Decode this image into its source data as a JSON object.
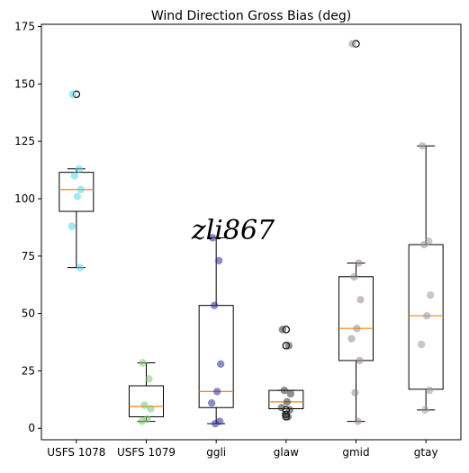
{
  "chart_data": {
    "type": "box",
    "title": "Wind Direction Gross Bias (deg)",
    "xlabel": "",
    "ylabel": "",
    "ylim": [
      -5,
      176
    ],
    "yticks": [
      0,
      25,
      50,
      75,
      100,
      125,
      150,
      175
    ],
    "grid": false,
    "watermark": "zli867",
    "categories": [
      "USFS 1078",
      "USFS 1079",
      "ggli",
      "glaw",
      "gmid",
      "gtay"
    ],
    "boxes": [
      {
        "name": "USFS 1078",
        "whisker_low": 70,
        "q1": 94.5,
        "median": 104,
        "q3": 111.5,
        "whisker_high": 113,
        "fliers": [
          145.5
        ]
      },
      {
        "name": "USFS 1079",
        "whisker_low": 3,
        "q1": 5,
        "median": 9.5,
        "q3": 18.5,
        "whisker_high": 28.5,
        "fliers": []
      },
      {
        "name": "ggli",
        "whisker_low": 2,
        "q1": 9,
        "median": 16,
        "q3": 53.5,
        "whisker_high": 83,
        "fliers": []
      },
      {
        "name": "glaw",
        "whisker_low": 8.5,
        "q1": 8.5,
        "median": 11.5,
        "q3": 16.5,
        "whisker_high": 16.5,
        "fliers": [
          5,
          6,
          8,
          36,
          43
        ]
      },
      {
        "name": "gmid",
        "whisker_low": 3,
        "q1": 29.5,
        "median": 43.5,
        "q3": 66,
        "whisker_high": 72,
        "fliers": [
          167.5
        ]
      },
      {
        "name": "gtay",
        "whisker_low": 8,
        "q1": 17,
        "median": 49,
        "q3": 80,
        "whisker_high": 123,
        "fliers": []
      }
    ],
    "points": [
      {
        "name": "USFS 1078",
        "color": "#5bd3eb",
        "values": [
          145.5,
          113,
          110,
          104,
          101,
          88,
          70
        ]
      },
      {
        "name": "USFS 1079",
        "color": "#7ec46e",
        "values": [
          28.5,
          21.5,
          10,
          8.5,
          4,
          3
        ]
      },
      {
        "name": "ggli",
        "color": "#2d2d96",
        "values": [
          83,
          73,
          53.5,
          28,
          16,
          11,
          3,
          2
        ]
      },
      {
        "name": "glaw",
        "color": "#333333",
        "values": [
          43,
          36,
          16.5,
          15,
          11.5,
          9,
          8,
          6,
          5
        ]
      },
      {
        "name": "gmid",
        "color": "#9b8b86",
        "values": [
          167.5,
          72,
          66,
          56,
          43.5,
          39,
          29.5,
          15.5,
          3
        ]
      },
      {
        "name": "gtay",
        "color": "#999999",
        "values": [
          123,
          81.5,
          80,
          58,
          49,
          36.5,
          16.5,
          8
        ]
      }
    ]
  }
}
